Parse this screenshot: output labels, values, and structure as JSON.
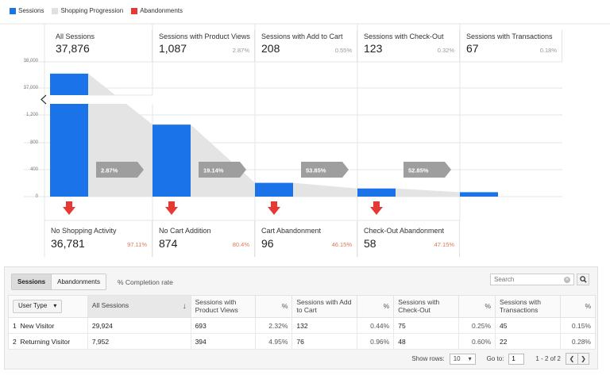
{
  "legend": [
    {
      "label": "Sessions",
      "color": "#1a73e8"
    },
    {
      "label": "Shopping Progression",
      "color": "#e0e0e0"
    },
    {
      "label": "Abandonments",
      "color": "#e53935"
    }
  ],
  "stages": [
    {
      "title": "All Sessions",
      "value": "37,876",
      "pct": ""
    },
    {
      "title": "Sessions with Product Views",
      "value": "1,087",
      "pct": "2.87%"
    },
    {
      "title": "Sessions with Add to Cart",
      "value": "208",
      "pct": "0.55%"
    },
    {
      "title": "Sessions with Check-Out",
      "value": "123",
      "pct": "0.32%"
    },
    {
      "title": "Sessions with Transactions",
      "value": "67",
      "pct": "0.18%"
    }
  ],
  "chart_data": {
    "type": "bar",
    "categories": [
      "All Sessions",
      "Sessions with Product Views",
      "Sessions with Add to Cart",
      "Sessions with Check-Out",
      "Sessions with Transactions"
    ],
    "values": [
      37876,
      1087,
      208,
      123,
      67
    ],
    "y_ticks": [
      "38,000",
      "37,000",
      "1,200",
      "800",
      "400",
      "0"
    ],
    "axis_break": true,
    "progression_rates": [
      "2.87%",
      "19.14%",
      "53.85%",
      "52.85%"
    ]
  },
  "abandonments": [
    {
      "title": "No Shopping Activity",
      "value": "36,781",
      "pct": "97.11%"
    },
    {
      "title": "No Cart Addition",
      "value": "874",
      "pct": "80.4%"
    },
    {
      "title": "Cart Abandonment",
      "value": "96",
      "pct": "46.15%"
    },
    {
      "title": "Check-Out Abandonment",
      "value": "58",
      "pct": "47.15%"
    }
  ],
  "toolbar": {
    "tab_sessions": "Sessions",
    "tab_abandonments": "Abandonments",
    "completion": "% Completion rate",
    "search_placeholder": "Search"
  },
  "table": {
    "user_type_label": "User Type",
    "headers": [
      "All Sessions",
      "Sessions with Product Views",
      "%",
      "Sessions with Add to Cart",
      "%",
      "Sessions with Check-Out",
      "%",
      "Sessions with Transactions",
      "%"
    ],
    "rows": [
      {
        "index": "1",
        "name": "New Visitor",
        "cells": [
          "29,924",
          "693",
          "2.32%",
          "132",
          "0.44%",
          "75",
          "0.25%",
          "45",
          "0.15%"
        ]
      },
      {
        "index": "2",
        "name": "Returning Visitor",
        "cells": [
          "7,952",
          "394",
          "4.95%",
          "76",
          "0.96%",
          "48",
          "0.60%",
          "22",
          "0.28%"
        ]
      }
    ]
  },
  "footer": {
    "show_rows_label": "Show rows:",
    "show_rows_value": "10",
    "goto_label": "Go to:",
    "goto_value": "1",
    "range": "1 - 2 of 2"
  }
}
